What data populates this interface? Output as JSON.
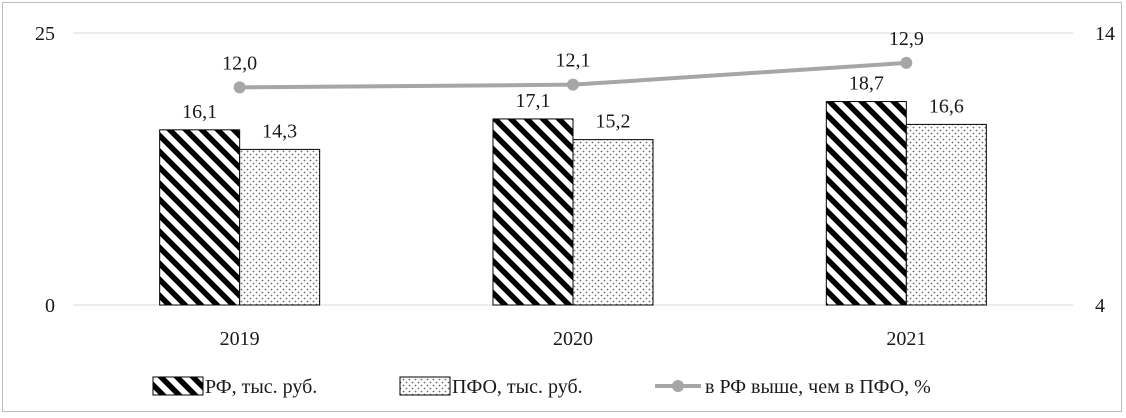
{
  "chart_data": {
    "type": "bar",
    "categories": [
      "2019",
      "2020",
      "2021"
    ],
    "series": [
      {
        "name": "РФ, тыс. руб.",
        "kind": "bar",
        "axis": "left",
        "pattern": "diagonal-stripes",
        "values": [
          16.1,
          17.1,
          18.7
        ],
        "labels": [
          "16,1",
          "17,1",
          "18,7"
        ]
      },
      {
        "name": "ПФО, тыс. руб.",
        "kind": "bar",
        "axis": "left",
        "pattern": "dots",
        "values": [
          14.3,
          15.2,
          16.6
        ],
        "labels": [
          "14,3",
          "15,2",
          "16,6"
        ]
      },
      {
        "name": "в РФ выше, чем в ПФО, %",
        "kind": "line",
        "axis": "right",
        "color": "#a6a6a6",
        "values": [
          12.0,
          12.1,
          12.9
        ],
        "labels": [
          "12,0",
          "12,1",
          "12,9"
        ]
      }
    ],
    "left_axis": {
      "range": [
        0,
        25
      ],
      "ticks": [
        "0",
        "25"
      ]
    },
    "right_axis": {
      "range": [
        4,
        14
      ],
      "ticks": [
        "4",
        "14"
      ]
    },
    "grid": true,
    "legend_position": "bottom"
  }
}
